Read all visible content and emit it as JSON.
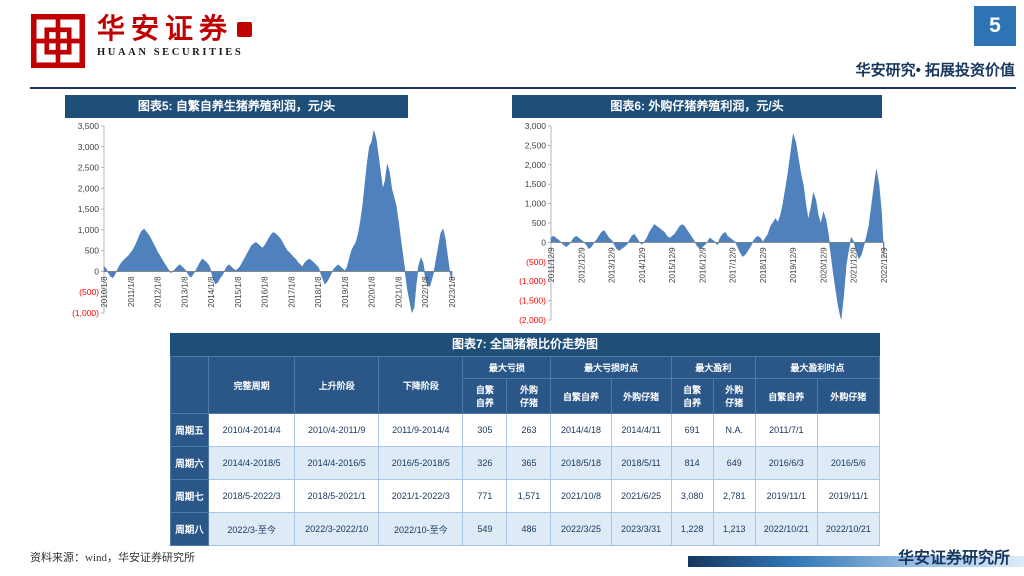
{
  "header": {
    "page_number": "5",
    "brand_cn": "华安证券",
    "brand_en": "HUAAN SECURITIES",
    "slogan": "华安研究• 拓展投资价值"
  },
  "footer": {
    "source": "资料来源：wind，华安证券研究所",
    "institute": "华安证券研究所"
  },
  "colors": {
    "title_bar": "#1F4E79",
    "accent": "#2E74B5",
    "brand_red": "#C00000",
    "chart_fill": "#4F81BD",
    "negative_label": "#FF0000",
    "table_header": "#2A5788",
    "row_alt": "#DEEBF7"
  },
  "chart_data": [
    {
      "type": "area",
      "title": "图表5: 自繁自养生猪养殖利润，元/头",
      "ylabel": "",
      "ylim": [
        -1000,
        3500
      ],
      "ytick": 500,
      "xtick_every": 12,
      "x_labels": [
        "2010/1/8",
        "2011/1/8",
        "2012/1/8",
        "2013/1/8",
        "2014/1/8",
        "2015/1/8",
        "2016/1/8",
        "2017/1/8",
        "2018/1/8",
        "2019/1/8",
        "2020/1/8",
        "2021/1/8",
        "2022/1/8",
        "2023/1/8"
      ],
      "values": [
        120,
        60,
        -40,
        -120,
        -150,
        -60,
        40,
        140,
        220,
        280,
        330,
        380,
        450,
        520,
        620,
        750,
        880,
        980,
        1020,
        950,
        880,
        790,
        680,
        580,
        470,
        380,
        290,
        200,
        120,
        30,
        -30,
        10,
        60,
        120,
        160,
        110,
        60,
        0,
        -90,
        -140,
        -60,
        10,
        110,
        210,
        300,
        260,
        210,
        150,
        10,
        -180,
        -300,
        -260,
        -160,
        -90,
        10,
        110,
        160,
        110,
        60,
        20,
        60,
        120,
        210,
        310,
        410,
        510,
        610,
        660,
        700,
        660,
        610,
        560,
        620,
        710,
        810,
        890,
        940,
        900,
        850,
        790,
        700,
        600,
        510,
        460,
        400,
        340,
        290,
        210,
        160,
        110,
        210,
        260,
        300,
        260,
        210,
        160,
        100,
        -20,
        -160,
        -300,
        -240,
        -140,
        -40,
        60,
        110,
        160,
        110,
        60,
        10,
        110,
        310,
        510,
        610,
        710,
        910,
        1210,
        1610,
        2110,
        2610,
        3010,
        3110,
        3390,
        3180,
        2780,
        2380,
        1980,
        2180,
        2580,
        2380,
        1980,
        1780,
        1580,
        1180,
        780,
        380,
        -20,
        -420,
        -700,
        -980,
        -860,
        -280,
        120,
        320,
        220,
        -120,
        -320,
        -360,
        -180,
        20,
        320,
        620,
        920,
        1020,
        780,
        380,
        -20,
        -220
      ]
    },
    {
      "type": "area",
      "title": "图表6: 外购仔猪养殖利润，元/头",
      "ylabel": "",
      "ylim": [
        -2000,
        3000
      ],
      "ytick": 500,
      "xtick_every": 12,
      "x_labels": [
        "2011/12/9",
        "2012/12/9",
        "2013/12/9",
        "2014/12/9",
        "2015/12/9",
        "2016/12/9",
        "2017/12/9",
        "2018/12/9",
        "2019/12/9",
        "2020/12/9",
        "2021/12/9",
        "2022/12/9"
      ],
      "values": [
        120,
        160,
        110,
        60,
        0,
        -60,
        -110,
        -60,
        10,
        110,
        160,
        110,
        60,
        10,
        -60,
        -160,
        -110,
        -10,
        60,
        160,
        260,
        310,
        210,
        110,
        60,
        -40,
        -160,
        -210,
        -160,
        -110,
        -60,
        40,
        160,
        210,
        110,
        10,
        -40,
        10,
        110,
        260,
        360,
        460,
        410,
        360,
        310,
        260,
        160,
        110,
        160,
        210,
        310,
        410,
        460,
        410,
        310,
        210,
        110,
        10,
        -90,
        -160,
        -110,
        -60,
        10,
        110,
        60,
        10,
        -60,
        110,
        210,
        260,
        160,
        110,
        60,
        10,
        -110,
        -260,
        -360,
        -310,
        -210,
        -110,
        10,
        110,
        160,
        110,
        10,
        110,
        210,
        410,
        510,
        610,
        510,
        710,
        1010,
        1410,
        1810,
        2310,
        2790,
        2580,
        2180,
        1780,
        1480,
        980,
        580,
        880,
        1280,
        1080,
        680,
        480,
        780,
        580,
        180,
        -320,
        -820,
        -1280,
        -1680,
        -1980,
        -1380,
        -580,
        -180,
        120,
        20,
        -220,
        -420,
        -320,
        -80,
        120,
        420,
        920,
        1420,
        1880,
        1480,
        780,
        -420
      ]
    },
    {
      "type": "table",
      "title": "图表7: 全国猪粮比价走势图",
      "col_groups": [
        "完整周期",
        "上升阶段",
        "下降阶段",
        "最大亏损",
        "最大亏损时点",
        "最大盈利",
        "最大盈利时点"
      ],
      "sub_headers": [
        "自繁\n自养",
        "外购\n仔猪",
        "自繁自养",
        "外购仔猪",
        "自繁\n自养",
        "外购\n仔猪",
        "自繁自养",
        "外购仔猪"
      ],
      "rows": [
        {
          "label": "周期五",
          "cells": [
            "2010/4-2014/4",
            "2010/4-2011/9",
            "2011/9-2014/4",
            "305",
            "263",
            "2014/4/18",
            "2014/4/11",
            "691",
            "N.A.",
            "2011/7/1",
            ""
          ]
        },
        {
          "label": "周期六",
          "cells": [
            "2014/4-2018/5",
            "2014/4-2016/5",
            "2016/5-2018/5",
            "326",
            "365",
            "2018/5/18",
            "2018/5/11",
            "814",
            "649",
            "2016/6/3",
            "2016/5/6"
          ]
        },
        {
          "label": "周期七",
          "cells": [
            "2018/5-2022/3",
            "2018/5-2021/1",
            "2021/1-2022/3",
            "771",
            "1,571",
            "2021/10/8",
            "2021/6/25",
            "3,080",
            "2,781",
            "2019/11/1",
            "2019/11/1"
          ]
        },
        {
          "label": "周期八",
          "cells": [
            "2022/3-至今",
            "2022/3-2022/10",
            "2022/10-至今",
            "549",
            "486",
            "2022/3/25",
            "2023/3/31",
            "1,228",
            "1,213",
            "2022/10/21",
            "2022/10/21"
          ]
        }
      ]
    }
  ]
}
